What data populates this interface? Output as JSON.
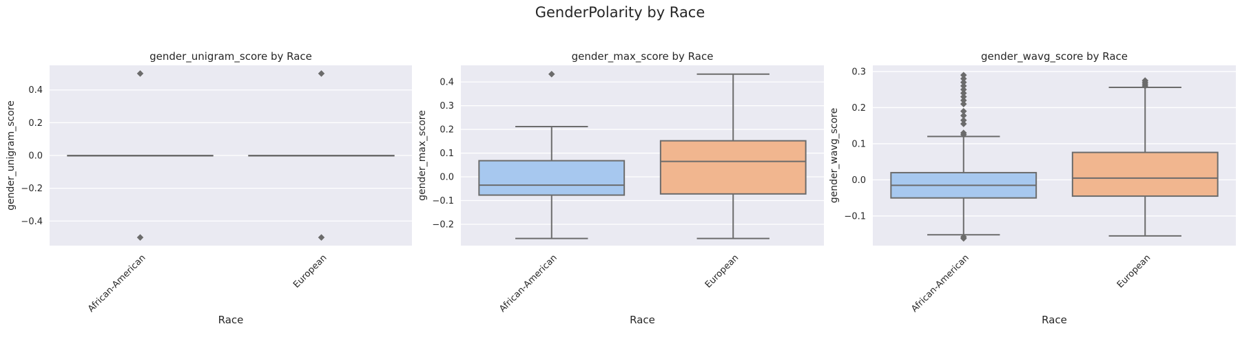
{
  "figure": {
    "suptitle": "GenderPolarity by Race",
    "colors": {
      "background": "#eaeaf2",
      "grid": "#ffffff",
      "box_line": "#6b6b6b",
      "text": "#262626",
      "african_american_fill": "#a7c8ef",
      "european_fill": "#f1b68f"
    }
  },
  "chart_data": [
    {
      "type": "box",
      "title": "gender_unigram_score by Race",
      "xlabel": "Race",
      "ylabel": "gender_unigram_score",
      "ylim": [
        -0.55,
        0.55
      ],
      "yticks": [
        -0.4,
        -0.2,
        0.0,
        0.2,
        0.4
      ],
      "ytick_labels": [
        "−0.4",
        "−0.2",
        "0.0",
        "0.2",
        "0.4"
      ],
      "categories": [
        "African-American",
        "European"
      ],
      "boxes": [
        {
          "category": "African-American",
          "q1": 0.0,
          "median": 0.0,
          "q3": 0.0,
          "whisker_low": 0.0,
          "whisker_high": 0.0,
          "outliers": [
            -0.5,
            0.5
          ]
        },
        {
          "category": "European",
          "q1": 0.0,
          "median": 0.0,
          "q3": 0.0,
          "whisker_low": 0.0,
          "whisker_high": 0.0,
          "outliers": [
            -0.5,
            0.5
          ]
        }
      ]
    },
    {
      "type": "box",
      "title": "gender_max_score by Race",
      "xlabel": "Race",
      "ylabel": "gender_max_score",
      "ylim": [
        -0.29,
        0.47
      ],
      "yticks": [
        -0.2,
        -0.1,
        0.0,
        0.1,
        0.2,
        0.3,
        0.4
      ],
      "ytick_labels": [
        "−0.2",
        "−0.1",
        "0.0",
        "0.1",
        "0.2",
        "0.3",
        "0.4"
      ],
      "categories": [
        "African-American",
        "European"
      ],
      "boxes": [
        {
          "category": "African-American",
          "q1": -0.077,
          "median": -0.035,
          "q3": 0.068,
          "whisker_low": -0.26,
          "whisker_high": 0.212,
          "outliers": [
            0.433
          ]
        },
        {
          "category": "European",
          "q1": -0.072,
          "median": 0.065,
          "q3": 0.152,
          "whisker_low": -0.26,
          "whisker_high": 0.433,
          "outliers": []
        }
      ]
    },
    {
      "type": "box",
      "title": "gender_wavg_score by Race",
      "xlabel": "Race",
      "ylabel": "gender_wavg_score",
      "ylim": [
        -0.182,
        0.317
      ],
      "yticks": [
        -0.1,
        0.0,
        0.1,
        0.2,
        0.3
      ],
      "ytick_labels": [
        "−0.1",
        "0.0",
        "0.1",
        "0.2",
        "0.3"
      ],
      "categories": [
        "African-American",
        "European"
      ],
      "boxes": [
        {
          "category": "African-American",
          "q1": -0.05,
          "median": -0.015,
          "q3": 0.02,
          "whisker_low": -0.152,
          "whisker_high": 0.12,
          "outliers": [
            -0.158,
            -0.162,
            0.125,
            0.13,
            0.155,
            0.165,
            0.178,
            0.19,
            0.21,
            0.22,
            0.23,
            0.24,
            0.25,
            0.26,
            0.27,
            0.28,
            0.29
          ]
        },
        {
          "category": "European",
          "q1": -0.045,
          "median": 0.005,
          "q3": 0.076,
          "whisker_low": -0.155,
          "whisker_high": 0.256,
          "outliers": [
            0.26,
            0.265,
            0.27,
            0.275
          ]
        }
      ]
    }
  ]
}
